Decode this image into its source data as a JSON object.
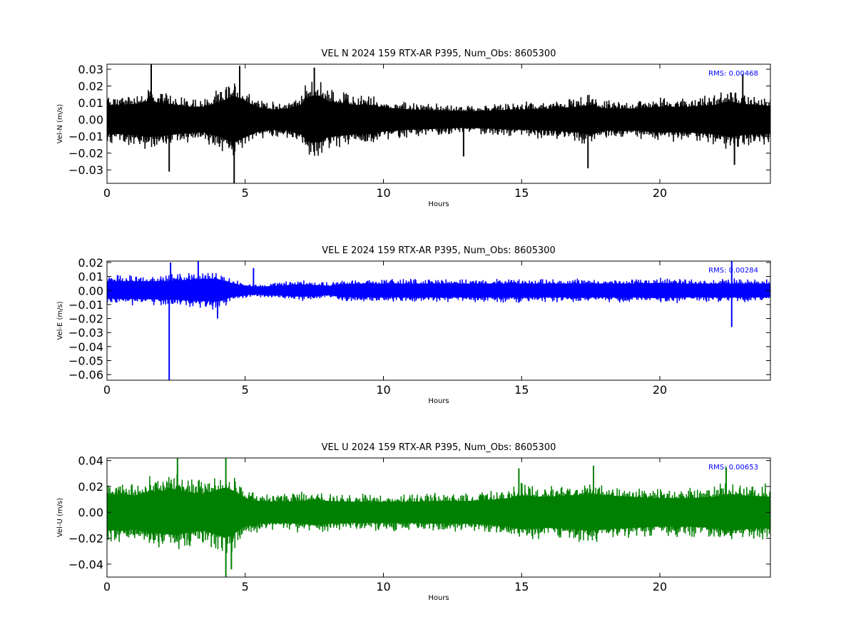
{
  "chart_data": [
    {
      "type": "line",
      "title": "VEL N 2024 159 RTX-AR  P395, Num_Obs: 8605300",
      "xlabel": "Hours",
      "ylabel": "Vel-N (m/s)",
      "xlim": [
        0,
        24
      ],
      "ylim": [
        -0.038,
        0.033
      ],
      "xticks": [
        0,
        5,
        10,
        15,
        20
      ],
      "xtick_labels": [
        "0",
        "5",
        "10",
        "15",
        "20"
      ],
      "yticks": [
        -0.03,
        -0.02,
        -0.01,
        0.0,
        0.01,
        0.02,
        0.03
      ],
      "ytick_labels": [
        "−0.03",
        "−0.02",
        "−0.01",
        "0.00",
        "0.01",
        "0.02",
        "0.03"
      ],
      "annotation": "RMS:  0.00468",
      "color": "#000000",
      "series": [
        {
          "envelope": {
            "x": [
              0,
              0.5,
              1,
              1.5,
              2,
              2.5,
              3,
              3.5,
              4,
              4.3,
              4.6,
              5,
              5.5,
              6,
              6.5,
              7,
              7.3,
              7.7,
              8,
              8.4,
              9,
              9.5,
              10,
              10.5,
              11,
              12,
              13,
              14,
              15,
              16,
              17,
              17.5,
              18,
              19,
              20,
              21,
              22,
              22.5,
              23,
              24
            ],
            "upper": [
              0.016,
              0.016,
              0.017,
              0.02,
              0.018,
              0.016,
              0.014,
              0.014,
              0.018,
              0.022,
              0.026,
              0.02,
              0.013,
              0.011,
              0.012,
              0.016,
              0.025,
              0.026,
              0.02,
              0.018,
              0.016,
              0.016,
              0.013,
              0.012,
              0.011,
              0.01,
              0.009,
              0.01,
              0.011,
              0.012,
              0.014,
              0.016,
              0.012,
              0.012,
              0.014,
              0.014,
              0.016,
              0.02,
              0.017,
              0.015
            ],
            "lower": [
              -0.015,
              -0.016,
              -0.017,
              -0.019,
              -0.018,
              -0.016,
              -0.014,
              -0.014,
              -0.018,
              -0.022,
              -0.025,
              -0.019,
              -0.013,
              -0.011,
              -0.012,
              -0.016,
              -0.024,
              -0.025,
              -0.019,
              -0.018,
              -0.016,
              -0.016,
              -0.013,
              -0.012,
              -0.011,
              -0.01,
              -0.009,
              -0.01,
              -0.011,
              -0.012,
              -0.014,
              -0.016,
              -0.012,
              -0.012,
              -0.014,
              -0.014,
              -0.016,
              -0.019,
              -0.017,
              -0.015
            ]
          },
          "spikes": [
            {
              "x": 1.6,
              "y": 0.033
            },
            {
              "x": 2.25,
              "y": -0.031
            },
            {
              "x": 4.6,
              "y": -0.038
            },
            {
              "x": 4.8,
              "y": 0.032
            },
            {
              "x": 7.5,
              "y": 0.031
            },
            {
              "x": 12.9,
              "y": -0.022
            },
            {
              "x": 17.4,
              "y": -0.029
            },
            {
              "x": 22.7,
              "y": -0.027
            },
            {
              "x": 23.0,
              "y": 0.027
            }
          ]
        }
      ]
    },
    {
      "type": "line",
      "title": "VEL E 2024 159 RTX-AR  P395, Num_Obs: 8605300",
      "xlabel": "Hours",
      "ylabel": "Vel-E (m/s)",
      "xlim": [
        0,
        24
      ],
      "ylim": [
        -0.064,
        0.021
      ],
      "xticks": [
        0,
        5,
        10,
        15,
        20
      ],
      "xtick_labels": [
        "0",
        "5",
        "10",
        "15",
        "20"
      ],
      "yticks": [
        -0.06,
        -0.05,
        -0.04,
        -0.03,
        -0.02,
        -0.01,
        0.0,
        0.01,
        0.02
      ],
      "ytick_labels": [
        "−0.06",
        "−0.05",
        "−0.04",
        "−0.03",
        "−0.02",
        "−0.01",
        "0.00",
        "0.01",
        "0.02"
      ],
      "annotation": "RMS:  0.00284",
      "color": "#0000ff",
      "series": [
        {
          "envelope": {
            "x": [
              0,
              0.5,
              1,
              1.5,
              2,
              2.5,
              3,
              3.5,
              4,
              4.5,
              5,
              5.5,
              6,
              6.5,
              7,
              7.5,
              8,
              8.5,
              9,
              10,
              11,
              12,
              13,
              14,
              15,
              16,
              17,
              18,
              19,
              20,
              21,
              22,
              23,
              24
            ],
            "upper": [
              0.012,
              0.012,
              0.012,
              0.012,
              0.012,
              0.013,
              0.014,
              0.015,
              0.015,
              0.01,
              0.006,
              0.005,
              0.006,
              0.007,
              0.008,
              0.007,
              0.006,
              0.008,
              0.009,
              0.009,
              0.009,
              0.009,
              0.009,
              0.009,
              0.009,
              0.009,
              0.009,
              0.009,
              0.009,
              0.01,
              0.009,
              0.009,
              0.009,
              0.009
            ],
            "lower": [
              -0.01,
              -0.011,
              -0.011,
              -0.011,
              -0.012,
              -0.012,
              -0.013,
              -0.014,
              -0.014,
              -0.009,
              -0.006,
              -0.005,
              -0.006,
              -0.007,
              -0.008,
              -0.007,
              -0.006,
              -0.008,
              -0.009,
              -0.009,
              -0.009,
              -0.009,
              -0.009,
              -0.009,
              -0.009,
              -0.009,
              -0.009,
              -0.009,
              -0.009,
              -0.01,
              -0.009,
              -0.009,
              -0.009,
              -0.009
            ]
          },
          "spikes": [
            {
              "x": 2.25,
              "y": -0.064
            },
            {
              "x": 2.3,
              "y": 0.02
            },
            {
              "x": 3.3,
              "y": 0.021
            },
            {
              "x": 4.0,
              "y": -0.02
            },
            {
              "x": 5.3,
              "y": 0.016
            },
            {
              "x": 22.6,
              "y": -0.026
            },
            {
              "x": 22.6,
              "y": 0.021
            }
          ]
        }
      ]
    },
    {
      "type": "line",
      "title": "VEL U 2024 159 RTX-AR  P395, Num_Obs: 8605300",
      "xlabel": "Hours",
      "ylabel": "Vel-U (m/s)",
      "xlim": [
        0,
        24
      ],
      "ylim": [
        -0.05,
        0.042
      ],
      "xticks": [
        0,
        5,
        10,
        15,
        20
      ],
      "xtick_labels": [
        "0",
        "5",
        "10",
        "15",
        "20"
      ],
      "yticks": [
        -0.04,
        -0.02,
        0.0,
        0.02,
        0.04
      ],
      "ytick_labels": [
        "−0.04",
        "−0.02",
        "0.00",
        "0.02",
        "0.04"
      ],
      "annotation": "RMS:  0.00653",
      "color": "#008000",
      "series": [
        {
          "envelope": {
            "x": [
              0,
              0.5,
              1,
              1.5,
              2,
              2.5,
              3,
              3.5,
              4,
              4.3,
              4.6,
              5,
              5.5,
              6,
              7,
              7.5,
              8,
              9,
              10,
              11,
              12,
              13,
              14,
              14.5,
              15,
              15.5,
              16,
              17,
              17.5,
              18,
              19,
              20,
              21,
              22,
              22.5,
              23,
              24
            ],
            "upper": [
              0.025,
              0.026,
              0.024,
              0.028,
              0.03,
              0.032,
              0.028,
              0.026,
              0.032,
              0.035,
              0.03,
              0.02,
              0.016,
              0.015,
              0.016,
              0.018,
              0.016,
              0.015,
              0.015,
              0.015,
              0.016,
              0.016,
              0.018,
              0.02,
              0.024,
              0.022,
              0.022,
              0.024,
              0.026,
              0.024,
              0.022,
              0.02,
              0.02,
              0.022,
              0.026,
              0.024,
              0.022
            ],
            "lower": [
              -0.025,
              -0.026,
              -0.024,
              -0.028,
              -0.03,
              -0.032,
              -0.028,
              -0.026,
              -0.032,
              -0.036,
              -0.03,
              -0.02,
              -0.016,
              -0.015,
              -0.016,
              -0.018,
              -0.016,
              -0.015,
              -0.015,
              -0.015,
              -0.016,
              -0.016,
              -0.018,
              -0.02,
              -0.024,
              -0.022,
              -0.022,
              -0.024,
              -0.026,
              -0.024,
              -0.022,
              -0.02,
              -0.02,
              -0.022,
              -0.026,
              -0.024,
              -0.022
            ]
          },
          "spikes": [
            {
              "x": 2.55,
              "y": 0.042
            },
            {
              "x": 4.3,
              "y": 0.042
            },
            {
              "x": 4.3,
              "y": -0.05
            },
            {
              "x": 4.5,
              "y": -0.044
            },
            {
              "x": 14.9,
              "y": 0.034
            },
            {
              "x": 17.6,
              "y": 0.036
            },
            {
              "x": 22.4,
              "y": 0.035
            }
          ]
        }
      ]
    }
  ]
}
